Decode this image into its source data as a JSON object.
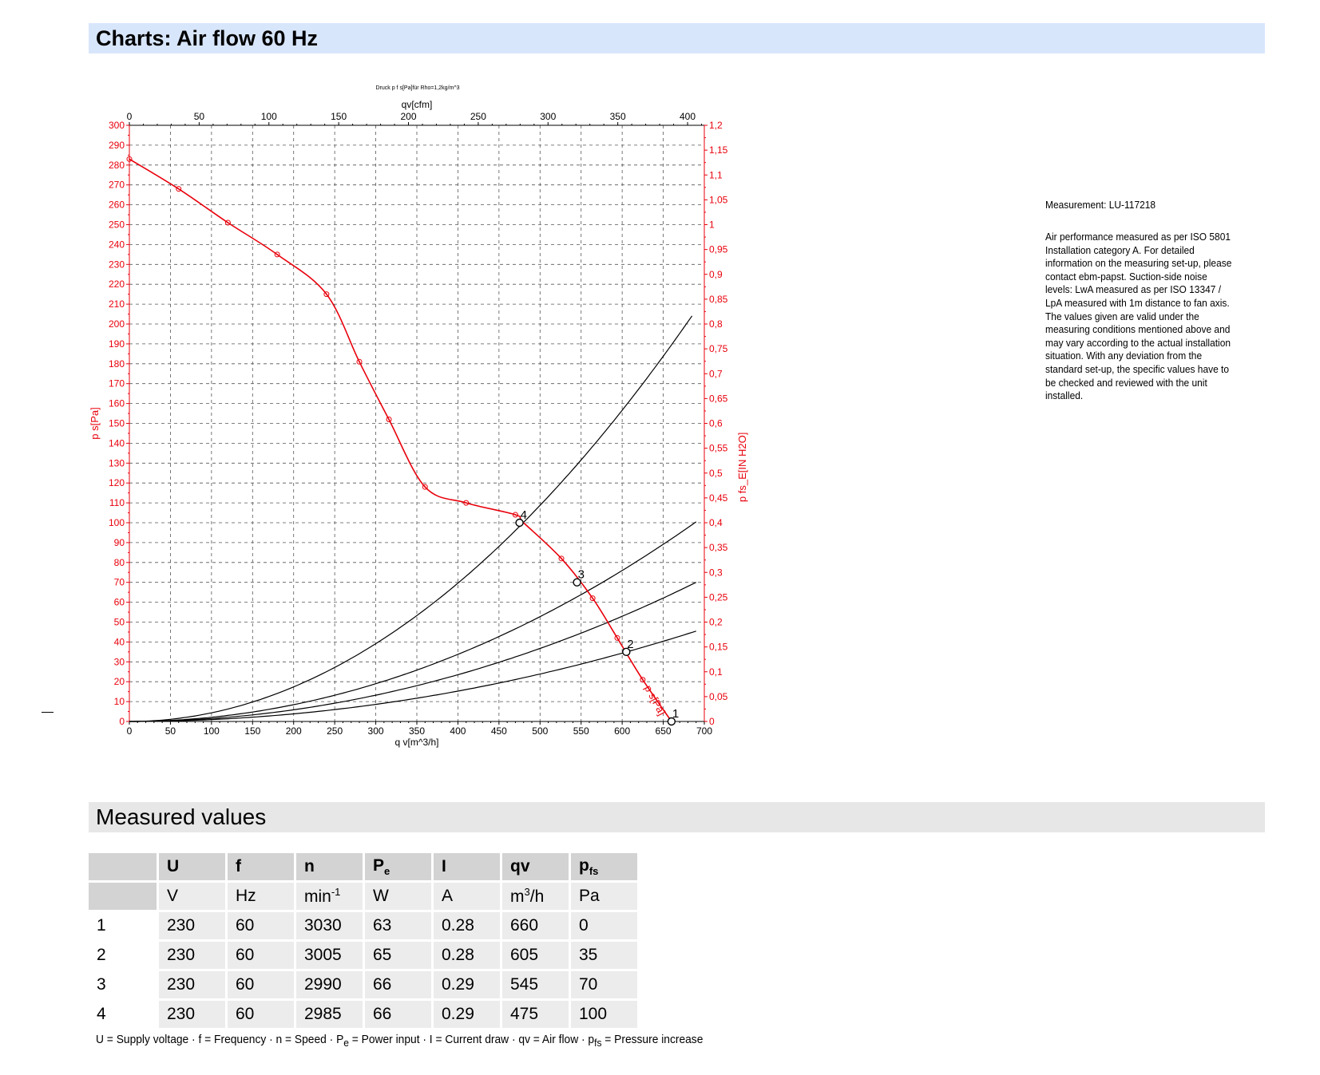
{
  "section_charts": {
    "title": "Charts: Air flow 60 Hz"
  },
  "notes": {
    "measurement": "Measurement: LU-117218",
    "description_lines": [
      "Air performance measured as per ISO 5801",
      "Installation category A. For detailed",
      "information on the measuring set-up, please",
      "contact ebm-papst. Suction-side noise",
      "levels: LwA measured as per ISO 13347 /",
      "LpA measured with 1m distance to fan axis.",
      "The values given are valid under the",
      "measuring conditions mentioned above and",
      "may vary according to the actual installation",
      "situation. With any deviation from the",
      "standard set-up, the specific values have to",
      "be checked and reviewed with the unit",
      "installed."
    ]
  },
  "chart_data": {
    "type": "line",
    "title": "Druck p f s[Pa]für Rho=1,2kg/m^3",
    "xlabel_bottom": "q v[m^3/h]",
    "xlabel_top": "qv[cfm]",
    "ylabel_left": "p s[Pa]",
    "ylabel_right": "p fs_E[IN H2O]",
    "xlim": [
      0,
      700
    ],
    "ylim": [
      0,
      300
    ],
    "top_xlim": [
      0,
      412
    ],
    "right_ylim": [
      0,
      1.2
    ],
    "grid": true,
    "x_ticks": [
      "0",
      "50",
      "100",
      "150",
      "200",
      "250",
      "300",
      "350",
      "400",
      "450",
      "500",
      "550",
      "600",
      "650",
      "700"
    ],
    "y_ticks": [
      "0",
      "10",
      "20",
      "30",
      "40",
      "50",
      "60",
      "70",
      "80",
      "90",
      "100",
      "110",
      "120",
      "130",
      "140",
      "150",
      "160",
      "170",
      "180",
      "190",
      "200",
      "210",
      "220",
      "230",
      "240",
      "250",
      "260",
      "270",
      "280",
      "290",
      "300"
    ],
    "top_ticks": [
      "0",
      "50",
      "100",
      "150",
      "200",
      "250",
      "300",
      "350",
      "400"
    ],
    "right_ticks": [
      "0",
      "0,05",
      "0,1",
      "0,15",
      "0,2",
      "0,25",
      "0,3",
      "0,35",
      "0,4",
      "0,45",
      "0,5",
      "0,55",
      "0,6",
      "0,65",
      "0,7",
      "0,75",
      "0,8",
      "0,85",
      "0,9",
      "0,95",
      "1",
      "1,05",
      "1,1",
      "1,15",
      "1,2"
    ],
    "fan_curve": {
      "name": "p s[Pa]",
      "color": "#e8000b",
      "points": [
        [
          0,
          283
        ],
        [
          60,
          268
        ],
        [
          120,
          251
        ],
        [
          180,
          235
        ],
        [
          240,
          215
        ],
        [
          280,
          181
        ],
        [
          316,
          152
        ],
        [
          360,
          118
        ],
        [
          410,
          110
        ],
        [
          470,
          104
        ],
        [
          480,
          100
        ],
        [
          526,
          82
        ],
        [
          564,
          62
        ],
        [
          594,
          42
        ],
        [
          625,
          21
        ],
        [
          660,
          0
        ]
      ],
      "markers": [
        [
          0,
          283
        ],
        [
          60,
          268
        ],
        [
          120,
          251
        ],
        [
          180,
          235
        ],
        [
          240,
          215
        ],
        [
          280,
          181
        ],
        [
          316,
          152
        ],
        [
          360,
          118
        ],
        [
          410,
          110
        ],
        [
          470,
          104
        ],
        [
          526,
          82
        ],
        [
          564,
          62
        ],
        [
          594,
          42
        ],
        [
          625,
          21
        ]
      ]
    },
    "system_curves": [
      {
        "k": 9.55e-05,
        "x_end": 690
      },
      {
        "k": 0.000147,
        "x_end": 690
      },
      {
        "k": 0.000211,
        "x_end": 690
      },
      {
        "k": 0.000435,
        "x_end": 687
      }
    ],
    "operating_points": [
      {
        "label": "1",
        "x": 660,
        "y": 0
      },
      {
        "label": "2",
        "x": 605,
        "y": 35
      },
      {
        "label": "3",
        "x": 545,
        "y": 70
      },
      {
        "label": "4",
        "x": 475,
        "y": 100
      }
    ]
  },
  "measured": {
    "title": "Measured values",
    "headers": [
      {
        "main": "U",
        "sub": ""
      },
      {
        "main": "f",
        "sub": ""
      },
      {
        "main": "n",
        "sub": ""
      },
      {
        "main": "P",
        "sub": "e"
      },
      {
        "main": "I",
        "sub": ""
      },
      {
        "main": "qv",
        "sub": ""
      },
      {
        "main": "p",
        "sub": "fs"
      }
    ],
    "units": [
      {
        "main": "V",
        "sup": ""
      },
      {
        "main": "Hz",
        "sup": ""
      },
      {
        "main": "min",
        "sup": "-1"
      },
      {
        "main": "W",
        "sup": ""
      },
      {
        "main": "A",
        "sup": ""
      },
      {
        "main": "m",
        "sup": "3",
        "after": "/h"
      },
      {
        "main": "Pa",
        "sup": ""
      }
    ],
    "rows": [
      [
        "1",
        "230",
        "60",
        "3030",
        "63",
        "0.28",
        "660",
        "0"
      ],
      [
        "2",
        "230",
        "60",
        "3005",
        "65",
        "0.28",
        "605",
        "35"
      ],
      [
        "3",
        "230",
        "60",
        "2990",
        "66",
        "0.29",
        "545",
        "70"
      ],
      [
        "4",
        "230",
        "60",
        "2985",
        "66",
        "0.29",
        "475",
        "100"
      ]
    ],
    "legend": {
      "part1": "U = Supply voltage · f = Frequency · n = Speed · P",
      "sub1": "e",
      "part2": " = Power input · I = Current draw · qv = Air flow · p",
      "sub2": "fs",
      "part3": " = Pressure increase"
    }
  },
  "colors": {
    "curve": "#e8000b",
    "axis_left": "#e8000b",
    "axis_right": "#e8000b",
    "system": "#000000",
    "header_blue": "#d8e6fb",
    "header_gray": "#e7e7e7"
  }
}
